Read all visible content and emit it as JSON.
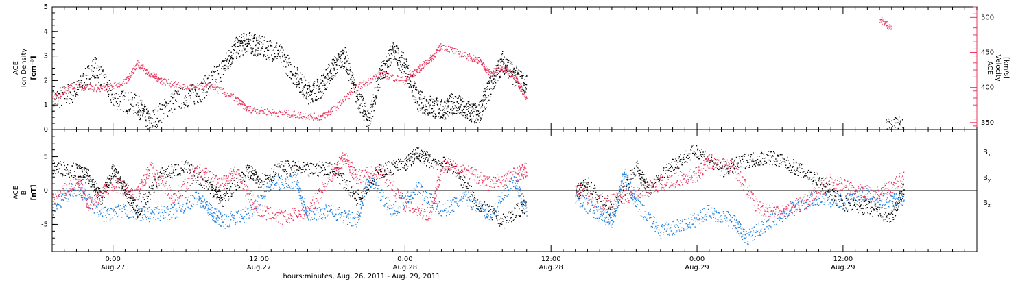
{
  "colors": {
    "black": "#000000",
    "pink": "#e8385f",
    "blue": "#1e7fe0"
  },
  "chart_data": [
    {
      "type": "scatter",
      "panel": "top",
      "ylabel_lines": [
        "ACE",
        "Ion Density",
        "[cm⁻³]"
      ],
      "ylim": [
        0,
        5
      ],
      "yticks": [
        "0",
        "1",
        "2",
        "3",
        "4",
        "5"
      ],
      "y2label_lines": [
        "ACE",
        "Velocity",
        "[km/s]"
      ],
      "y2lim": [
        340,
        515
      ],
      "y2ticks": [
        "350",
        "400",
        "450",
        "500"
      ],
      "x_start": "2011-08-26 19:00",
      "x_end": "2011-08-29 23:00",
      "series": [
        {
          "axis": "left",
          "color": "black",
          "points": [
            [
              "2011-08-26 19:00",
              1.2
            ],
            [
              "2011-08-26 21:00",
              1.6
            ],
            [
              "2011-08-26 22:30",
              2.6
            ],
            [
              "2011-08-27 00:00",
              1.3
            ],
            [
              "2011-08-27 02:00",
              1.0
            ],
            [
              "2011-08-27 03:00",
              0.3
            ],
            [
              "2011-08-27 05:00",
              1.2
            ],
            [
              "2011-08-27 07:00",
              1.5
            ],
            [
              "2011-08-27 09:00",
              2.5
            ],
            [
              "2011-08-27 10:00",
              3.3
            ],
            [
              "2011-08-27 11:00",
              3.6
            ],
            [
              "2011-08-27 12:00",
              3.4
            ],
            [
              "2011-08-27 13:30",
              3.2
            ],
            [
              "2011-08-27 15:00",
              2.2
            ],
            [
              "2011-08-27 16:00",
              1.5
            ],
            [
              "2011-08-27 17:00",
              1.7
            ],
            [
              "2011-08-27 18:00",
              2.5
            ],
            [
              "2011-08-27 19:00",
              3.0
            ],
            [
              "2011-08-27 20:00",
              1.4
            ],
            [
              "2011-08-27 21:00",
              0.4
            ],
            [
              "2011-08-27 22:00",
              2.3
            ],
            [
              "2011-08-27 23:00",
              3.2
            ],
            [
              "2011-08-28 00:00",
              2.6
            ],
            [
              "2011-08-28 01:00",
              1.2
            ],
            [
              "2011-08-28 02:00",
              1.0
            ],
            [
              "2011-08-28 03:00",
              0.8
            ],
            [
              "2011-08-28 04:00",
              1.1
            ],
            [
              "2011-08-28 05:00",
              0.8
            ],
            [
              "2011-08-28 06:00",
              0.6
            ],
            [
              "2011-08-28 07:00",
              1.8
            ],
            [
              "2011-08-28 08:00",
              2.8
            ],
            [
              "2011-08-28 09:00",
              2.2
            ],
            [
              "2011-08-28 10:00",
              1.8
            ],
            [
              "2011-08-29 15:30",
              0.1
            ],
            [
              "2011-08-29 17:00",
              0.1
            ]
          ]
        },
        {
          "axis": "right",
          "color": "pink",
          "points": [
            [
              "2011-08-26 19:00",
              385
            ],
            [
              "2011-08-26 21:00",
              405
            ],
            [
              "2011-08-26 23:00",
              398
            ],
            [
              "2011-08-27 01:00",
              408
            ],
            [
              "2011-08-27 02:00",
              435
            ],
            [
              "2011-08-27 03:00",
              420
            ],
            [
              "2011-08-27 04:00",
              410
            ],
            [
              "2011-08-27 06:00",
              400
            ],
            [
              "2011-08-27 08:00",
              403
            ],
            [
              "2011-08-27 10:00",
              385
            ],
            [
              "2011-08-27 11:00",
              370
            ],
            [
              "2011-08-27 13:00",
              365
            ],
            [
              "2011-08-27 15:00",
              362
            ],
            [
              "2011-08-27 17:00",
              358
            ],
            [
              "2011-08-27 18:00",
              368
            ],
            [
              "2011-08-27 20:00",
              400
            ],
            [
              "2011-08-27 22:00",
              420
            ],
            [
              "2011-08-28 00:00",
              410
            ],
            [
              "2011-08-28 01:00",
              425
            ],
            [
              "2011-08-28 02:00",
              440
            ],
            [
              "2011-08-28 03:00",
              460
            ],
            [
              "2011-08-28 05:00",
              445
            ],
            [
              "2011-08-28 06:00",
              440
            ],
            [
              "2011-08-28 07:00",
              420
            ],
            [
              "2011-08-28 08:00",
              430
            ],
            [
              "2011-08-28 09:00",
              415
            ],
            [
              "2011-08-28 10:00",
              385
            ],
            [
              "2011-08-29 15:00",
              498
            ],
            [
              "2011-08-29 16:00",
              485
            ]
          ]
        }
      ]
    },
    {
      "type": "scatter",
      "panel": "bottom",
      "ylabel_lines": [
        "ACE",
        "B",
        "[nT]"
      ],
      "ylim": [
        -9,
        9
      ],
      "yticks": [
        "-5",
        "0",
        "5"
      ],
      "legend": [
        "Bx",
        "By",
        "Bz"
      ],
      "series": [
        {
          "name": "Bx",
          "color": "black",
          "points": [
            [
              "2011-08-26 19:00",
              3.5
            ],
            [
              "2011-08-26 21:00",
              3.0
            ],
            [
              "2011-08-26 22:00",
              2.0
            ],
            [
              "2011-08-26 23:00",
              -1.0
            ],
            [
              "2011-08-27 00:00",
              3.0
            ],
            [
              "2011-08-27 01:00",
              0.0
            ],
            [
              "2011-08-27 02:00",
              -3.0
            ],
            [
              "2011-08-27 04:00",
              2.5
            ],
            [
              "2011-08-27 06:00",
              3.5
            ],
            [
              "2011-08-27 08:00",
              0.5
            ],
            [
              "2011-08-27 09:00",
              -1.5
            ],
            [
              "2011-08-27 11:00",
              3.0
            ],
            [
              "2011-08-27 12:00",
              1.5
            ],
            [
              "2011-08-27 14:00",
              3.5
            ],
            [
              "2011-08-27 16:00",
              3.0
            ],
            [
              "2011-08-27 18:00",
              3.5
            ],
            [
              "2011-08-27 20:00",
              -1.0
            ],
            [
              "2011-08-27 22:00",
              3.0
            ],
            [
              "2011-08-28 00:00",
              4.0
            ],
            [
              "2011-08-28 01:00",
              5.5
            ],
            [
              "2011-08-28 02:00",
              4.5
            ],
            [
              "2011-08-28 04:00",
              3.5
            ],
            [
              "2011-08-28 06:00",
              -2.0
            ],
            [
              "2011-08-28 08:00",
              -4.5
            ],
            [
              "2011-08-28 10:00",
              -2.0
            ],
            [
              "2011-08-28 14:00",
              -0.5
            ],
            [
              "2011-08-28 15:00",
              1.0
            ],
            [
              "2011-08-28 17:00",
              -3.0
            ],
            [
              "2011-08-28 19:00",
              3.5
            ],
            [
              "2011-08-28 20:00",
              0.0
            ],
            [
              "2011-08-28 22:00",
              4.0
            ],
            [
              "2011-08-29 00:00",
              6.0
            ],
            [
              "2011-08-29 02:00",
              3.0
            ],
            [
              "2011-08-29 04:00",
              4.5
            ],
            [
              "2011-08-29 06:00",
              5.0
            ],
            [
              "2011-08-29 08:00",
              3.5
            ],
            [
              "2011-08-29 10:00",
              1.5
            ],
            [
              "2011-08-29 12:00",
              -2.0
            ],
            [
              "2011-08-29 14:00",
              -2.5
            ],
            [
              "2011-08-29 16:00",
              -4.0
            ],
            [
              "2011-08-29 17:00",
              0.5
            ]
          ]
        },
        {
          "name": "By",
          "color": "blue",
          "points": [
            [
              "2011-08-26 19:00",
              -2.5
            ],
            [
              "2011-08-26 21:00",
              0.5
            ],
            [
              "2011-08-26 23:00",
              -3.5
            ],
            [
              "2011-08-27 01:00",
              -3.0
            ],
            [
              "2011-08-27 03:00",
              -3.5
            ],
            [
              "2011-08-27 05:00",
              -3.0
            ],
            [
              "2011-08-27 07:00",
              -1.0
            ],
            [
              "2011-08-27 08:00",
              -3.0
            ],
            [
              "2011-08-27 09:00",
              -4.5
            ],
            [
              "2011-08-27 11:00",
              -3.5
            ],
            [
              "2011-08-27 13:00",
              1.0
            ],
            [
              "2011-08-27 15:00",
              1.5
            ],
            [
              "2011-08-27 16:00",
              -3.5
            ],
            [
              "2011-08-27 18:00",
              -3.0
            ],
            [
              "2011-08-27 20:00",
              -4.5
            ],
            [
              "2011-08-27 21:00",
              2.0
            ],
            [
              "2011-08-27 23:00",
              -3.0
            ],
            [
              "2011-08-28 01:00",
              0.5
            ],
            [
              "2011-08-28 03:00",
              -3.0
            ],
            [
              "2011-08-28 05:00",
              -1.0
            ],
            [
              "2011-08-28 07:00",
              -3.5
            ],
            [
              "2011-08-28 09:00",
              1.5
            ],
            [
              "2011-08-28 10:00",
              -3.0
            ],
            [
              "2011-08-28 14:00",
              -1.0
            ],
            [
              "2011-08-28 16:00",
              -3.5
            ],
            [
              "2011-08-28 17:00",
              -4.5
            ],
            [
              "2011-08-28 18:00",
              2.5
            ],
            [
              "2011-08-28 19:00",
              -2.0
            ],
            [
              "2011-08-28 21:00",
              -6.0
            ],
            [
              "2011-08-28 23:00",
              -5.0
            ],
            [
              "2011-08-29 01:00",
              -3.0
            ],
            [
              "2011-08-29 03:00",
              -4.5
            ],
            [
              "2011-08-29 04:00",
              -7.0
            ],
            [
              "2011-08-29 06:00",
              -4.5
            ],
            [
              "2011-08-29 08:00",
              -2.5
            ],
            [
              "2011-08-29 10:00",
              -1.0
            ],
            [
              "2011-08-29 12:00",
              -1.5
            ],
            [
              "2011-08-29 14:00",
              -0.5
            ],
            [
              "2011-08-29 16:00",
              -1.5
            ],
            [
              "2011-08-29 17:00",
              -1.0
            ]
          ]
        },
        {
          "name": "Bz",
          "color": "pink",
          "points": [
            [
              "2011-08-26 19:00",
              -1.5
            ],
            [
              "2011-08-26 21:00",
              1.5
            ],
            [
              "2011-08-26 22:00",
              -2.0
            ],
            [
              "2011-08-27 00:00",
              1.0
            ],
            [
              "2011-08-27 02:00",
              -0.5
            ],
            [
              "2011-08-27 03:00",
              3.5
            ],
            [
              "2011-08-27 05:00",
              -1.0
            ],
            [
              "2011-08-27 07:00",
              3.0
            ],
            [
              "2011-08-27 09:00",
              1.0
            ],
            [
              "2011-08-27 10:00",
              3.0
            ],
            [
              "2011-08-27 12:00",
              -3.0
            ],
            [
              "2011-08-27 14:00",
              -4.0
            ],
            [
              "2011-08-27 16:00",
              -3.0
            ],
            [
              "2011-08-27 18:00",
              2.5
            ],
            [
              "2011-08-27 19:00",
              5.0
            ],
            [
              "2011-08-27 20:00",
              2.0
            ],
            [
              "2011-08-27 22:00",
              3.0
            ],
            [
              "2011-08-28 00:00",
              -2.0
            ],
            [
              "2011-08-28 02:00",
              -3.5
            ],
            [
              "2011-08-28 03:00",
              3.5
            ],
            [
              "2011-08-28 05:00",
              3.0
            ],
            [
              "2011-08-28 07:00",
              1.0
            ],
            [
              "2011-08-28 09:00",
              2.5
            ],
            [
              "2011-08-28 10:00",
              3.0
            ],
            [
              "2011-08-28 14:00",
              0.5
            ],
            [
              "2011-08-28 16:00",
              -2.0
            ],
            [
              "2011-08-28 18:00",
              -1.0
            ],
            [
              "2011-08-28 20:00",
              0.5
            ],
            [
              "2011-08-28 22:00",
              1.5
            ],
            [
              "2011-08-29 00:00",
              2.5
            ],
            [
              "2011-08-29 01:00",
              4.5
            ],
            [
              "2011-08-29 03:00",
              3.5
            ],
            [
              "2011-08-29 05:00",
              -2.5
            ],
            [
              "2011-08-29 07:00",
              -3.0
            ],
            [
              "2011-08-29 09:00",
              -1.5
            ],
            [
              "2011-08-29 11:00",
              1.5
            ],
            [
              "2011-08-29 13:00",
              0.0
            ],
            [
              "2011-08-29 15:00",
              -0.5
            ],
            [
              "2011-08-29 17:00",
              2.0
            ]
          ]
        }
      ]
    }
  ],
  "x_axis": {
    "ticks": [
      {
        "time": "2011-08-27 00:00",
        "label": "0:00",
        "date": "Aug.27"
      },
      {
        "time": "2011-08-27 12:00",
        "label": "12:00",
        "date": "Aug.27"
      },
      {
        "time": "2011-08-28 00:00",
        "label": "0:00",
        "date": "Aug.28"
      },
      {
        "time": "2011-08-28 12:00",
        "label": "12:00",
        "date": "Aug.28"
      },
      {
        "time": "2011-08-29 00:00",
        "label": "0:00",
        "date": "Aug.29"
      },
      {
        "time": "2011-08-29 12:00",
        "label": "12:00",
        "date": "Aug.29"
      }
    ],
    "xlabel": "hours:minutes, Aug. 26, 2011 - Aug. 29, 2011"
  }
}
